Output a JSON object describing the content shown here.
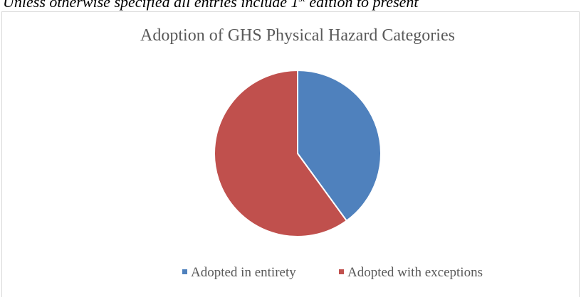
{
  "note": {
    "before": "Unless otherwise specified all entries include 1",
    "sup": "st",
    "after": " edition to present"
  },
  "chart_data": {
    "type": "pie",
    "title": "Adoption of GHS Physical Hazard Categories",
    "categories": [
      "Adopted in entirety",
      "Adopted with exceptions"
    ],
    "values": [
      40,
      60
    ],
    "colors": [
      "#4f81bd",
      "#c0504d"
    ],
    "legend": "bottom"
  }
}
